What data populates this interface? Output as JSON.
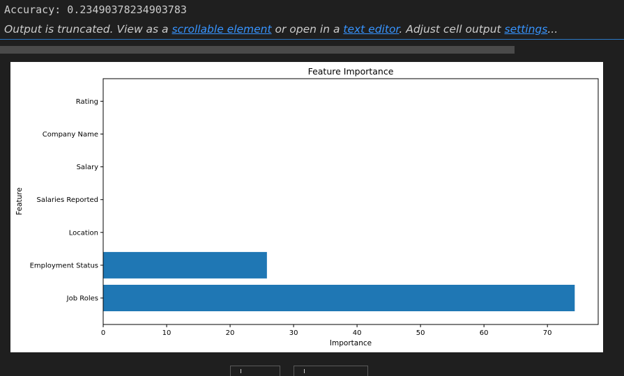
{
  "output": {
    "accuracy_text": "Accuracy: 0.23490378234903783",
    "truncation": {
      "prefix": "Output is truncated. View as a ",
      "link_scrollable": "scrollable element",
      "middle": " or open in a ",
      "link_editor": "text editor",
      "middle2": ". Adjust cell output ",
      "link_settings": "settings",
      "suffix": "..."
    }
  },
  "colors": {
    "background": "#1f1f1f",
    "link": "#3794ff",
    "bar": "#1f77b4"
  },
  "chart_data": {
    "type": "bar",
    "orientation": "horizontal",
    "title": "Feature Importance",
    "xlabel": "Importance",
    "ylabel": "Feature",
    "categories": [
      "Job Roles",
      "Employment Status",
      "Location",
      "Salaries Reported",
      "Salary",
      "Company Name",
      "Rating"
    ],
    "values": [
      74.3,
      25.8,
      0,
      0,
      0,
      0,
      0
    ],
    "xlim": [
      0,
      78
    ],
    "xticks": [
      0,
      10,
      20,
      30,
      40,
      50,
      60,
      70
    ],
    "grid": false,
    "legend": "none"
  }
}
